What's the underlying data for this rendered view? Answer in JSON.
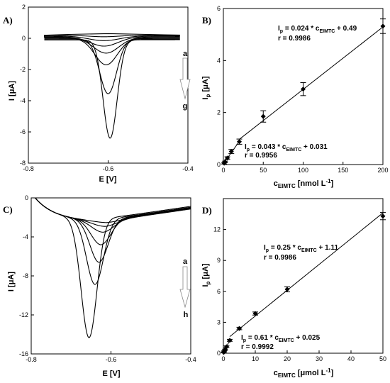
{
  "chart_data": [
    {
      "id": "A",
      "type": "line",
      "panel_label": "A)",
      "xlabel": "E [V]",
      "ylabel": "I [μA]",
      "xlim": [
        -0.8,
        -0.4
      ],
      "ylim": [
        -8,
        2
      ],
      "x_ticks": [
        -0.8,
        -0.6,
        -0.4
      ],
      "y_ticks": [
        2,
        0,
        -2,
        -4,
        -6,
        -8
      ],
      "x_tick_labels": [
        "-0.8",
        "-0.6",
        "-0.4"
      ],
      "y_tick_labels": [
        "2",
        "0",
        "-2",
        "-4",
        "-6",
        "-8"
      ],
      "x_range_data": [
        -0.76,
        -0.42
      ],
      "arrow_start": "a",
      "arrow_end": "g",
      "series": [
        {
          "peak_x": -0.61,
          "peak_y": -0.1,
          "width": 0.055,
          "base": 0.2
        },
        {
          "peak_x": -0.61,
          "peak_y": -0.3,
          "width": 0.055,
          "base": 0.15
        },
        {
          "peak_x": -0.61,
          "peak_y": -0.6,
          "width": 0.05,
          "base": 0.1
        },
        {
          "peak_x": -0.605,
          "peak_y": -1.0,
          "width": 0.045,
          "base": 0.05
        },
        {
          "peak_x": -0.605,
          "peak_y": -1.7,
          "width": 0.04,
          "base": 0.0
        },
        {
          "peak_x": -0.6,
          "peak_y": -3.5,
          "width": 0.03,
          "base": -0.05
        },
        {
          "peak_x": -0.595,
          "peak_y": -6.3,
          "width": 0.025,
          "base": -0.1
        }
      ]
    },
    {
      "id": "B",
      "type": "scatter",
      "panel_label": "B)",
      "xlabel": "c",
      "xlabel_sub": "EIMTC",
      "xlabel_unit": " [nmol L",
      "xlabel_sup": "-1",
      "xlabel_close": "]",
      "ylabel": "I",
      "ylabel_sub": "p",
      "ylabel_unit": " [μA]",
      "xlim": [
        0,
        200
      ],
      "ylim": [
        0,
        6
      ],
      "x_ticks": [
        0,
        50,
        100,
        150,
        200
      ],
      "y_ticks": [
        0,
        2,
        4,
        6
      ],
      "x_tick_labels": [
        "0",
        "50",
        "100",
        "150",
        "200"
      ],
      "y_tick_labels": [
        "0",
        "2",
        "4",
        "6"
      ],
      "points": [
        {
          "x": 1,
          "y": 0.05,
          "err": 0.03
        },
        {
          "x": 2,
          "y": 0.1,
          "err": 0.03
        },
        {
          "x": 5,
          "y": 0.25,
          "err": 0.05
        },
        {
          "x": 10,
          "y": 0.5,
          "err": 0.08
        },
        {
          "x": 20,
          "y": 0.88,
          "err": 0.1
        },
        {
          "x": 50,
          "y": 1.85,
          "err": 0.22
        },
        {
          "x": 100,
          "y": 2.9,
          "err": 0.25
        },
        {
          "x": 200,
          "y": 5.32,
          "err": 0.28
        }
      ],
      "fits": [
        {
          "x_range": [
            0,
            20
          ],
          "slope": 0.043,
          "intercept": 0.031,
          "label_parts": [
            "I",
            "p",
            " = 0.043 * c",
            "EIMTC",
            " + 0.031"
          ],
          "r": "r = 0.9956"
        },
        {
          "x_range": [
            20,
            200
          ],
          "slope": 0.024,
          "intercept": 0.49,
          "label_parts": [
            "I",
            "p",
            " = 0.024 * c",
            "EIMTC",
            " + 0.49"
          ],
          "r": "r = 0.9986"
        }
      ]
    },
    {
      "id": "C",
      "type": "line",
      "panel_label": "C)",
      "xlabel": "E [V]",
      "ylabel": "I [μA]",
      "xlim": [
        -0.8,
        -0.4
      ],
      "ylim": [
        -16,
        0
      ],
      "x_ticks": [
        -0.8,
        -0.6,
        -0.4
      ],
      "y_ticks": [
        0,
        -4,
        -8,
        -12,
        -16
      ],
      "x_tick_labels": [
        "-0.8",
        "-0.6",
        "-0.4"
      ],
      "y_tick_labels": [
        "0",
        "-4",
        "-8",
        "-12",
        "-16"
      ],
      "x_range_data": [
        -0.79,
        -0.4
      ],
      "arrow_start": "a",
      "arrow_end": "h",
      "series": [
        {
          "peak_x": -0.61,
          "peak_y": -2.6,
          "width": 0.05
        },
        {
          "peak_x": -0.615,
          "peak_y": -3.0,
          "width": 0.045
        },
        {
          "peak_x": -0.62,
          "peak_y": -3.6,
          "width": 0.04
        },
        {
          "peak_x": -0.625,
          "peak_y": -4.9,
          "width": 0.035
        },
        {
          "peak_x": -0.63,
          "peak_y": -6.7,
          "width": 0.032
        },
        {
          "peak_x": -0.64,
          "peak_y": -9.0,
          "width": 0.03
        },
        {
          "peak_x": -0.655,
          "peak_y": -14.5,
          "width": 0.028
        }
      ]
    },
    {
      "id": "D",
      "type": "scatter",
      "panel_label": "D)",
      "xlabel": "c",
      "xlabel_sub": "EIMTC",
      "xlabel_unit": " [μmol L",
      "xlabel_sup": "-1",
      "xlabel_close": "]",
      "ylabel": "I",
      "ylabel_sub": "p",
      "ylabel_unit": " [μA]",
      "xlim": [
        0,
        50
      ],
      "ylim": [
        0,
        15
      ],
      "x_ticks": [
        0,
        10,
        20,
        30,
        40,
        50
      ],
      "y_ticks": [
        0,
        3,
        6,
        9,
        12
      ],
      "x_tick_labels": [
        "0",
        "10",
        "20",
        "30",
        "40",
        "50"
      ],
      "y_tick_labels": [
        "0",
        "3",
        "6",
        "9",
        "12"
      ],
      "points": [
        {
          "x": 0.1,
          "y": 0.08,
          "err": 0.05
        },
        {
          "x": 0.25,
          "y": 0.18,
          "err": 0.05
        },
        {
          "x": 0.5,
          "y": 0.33,
          "err": 0.06
        },
        {
          "x": 1,
          "y": 0.63,
          "err": 0.08
        },
        {
          "x": 2,
          "y": 1.25,
          "err": 0.1
        },
        {
          "x": 5,
          "y": 2.4,
          "err": 0.12
        },
        {
          "x": 10,
          "y": 3.85,
          "err": 0.15
        },
        {
          "x": 20,
          "y": 6.2,
          "err": 0.25
        },
        {
          "x": 50,
          "y": 13.3,
          "err": 0.35
        }
      ],
      "fits": [
        {
          "x_range": [
            0,
            2
          ],
          "slope": 0.61,
          "intercept": 0.025,
          "label_parts": [
            "I",
            "p",
            " = 0.61 * c",
            "EIMTC",
            " + 0.025"
          ],
          "r": "r = 0.9992"
        },
        {
          "x_range": [
            2,
            50
          ],
          "slope": 0.25,
          "intercept": 1.11,
          "label_parts": [
            "I",
            "p",
            " = 0.25 * c",
            "EIMTC",
            " + 1.11"
          ],
          "r": "r = 0.9986"
        }
      ]
    }
  ]
}
